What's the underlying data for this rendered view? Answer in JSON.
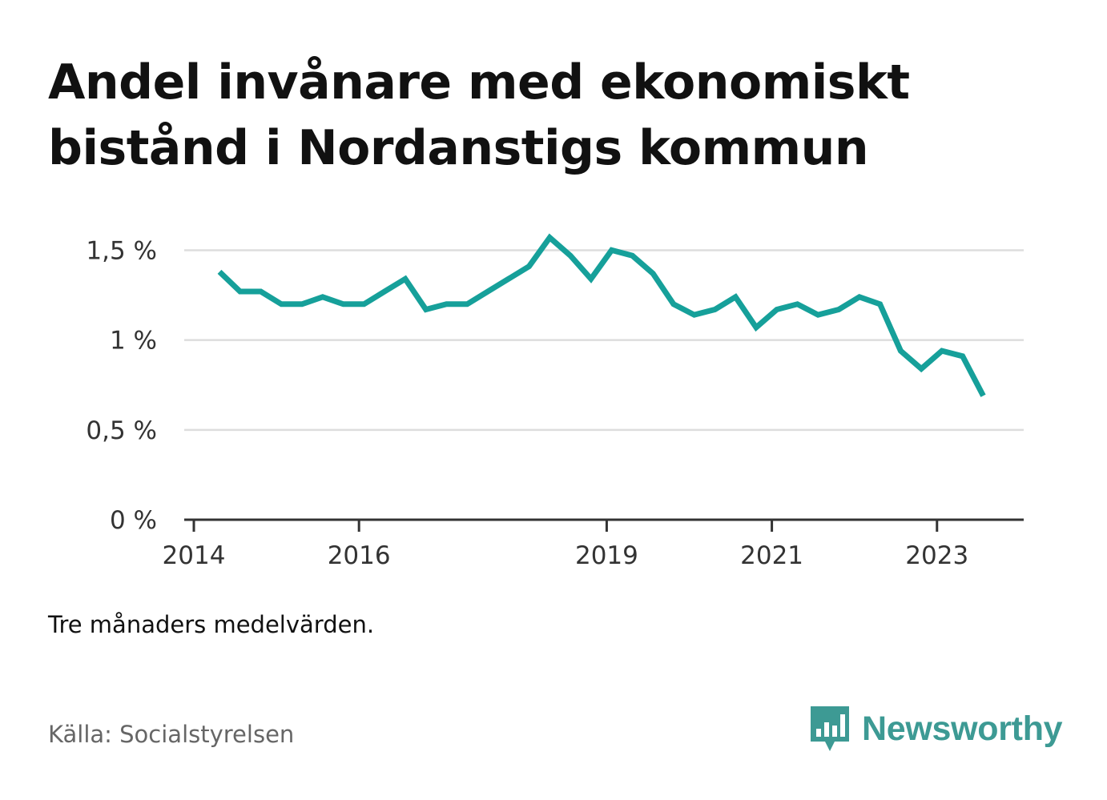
{
  "title": "Andel invånare med ekonomiskt bistånd i Nordanstigs kommun",
  "note": "Tre månaders medelvärden.",
  "source": "Källa: Socialstyrelsen",
  "brand": {
    "name": "Newsworthy",
    "icon": "newsworthy-chart-bubble-icon",
    "color": "#3d9a94"
  },
  "chart_data": {
    "type": "line",
    "title": "Andel invånare med ekonomiskt bistånd i Nordanstigs kommun",
    "xlabel": "",
    "ylabel": "",
    "ylim": [
      0,
      1.6
    ],
    "y_ticks": [
      {
        "value": 0,
        "label": "0 %"
      },
      {
        "value": 0.5,
        "label": "0,5 %"
      },
      {
        "value": 1,
        "label": "1 %"
      },
      {
        "value": 1.5,
        "label": "1,5 %"
      }
    ],
    "x_ticks": [
      {
        "value": 2014,
        "label": "2014"
      },
      {
        "value": 2016,
        "label": "2016"
      },
      {
        "value": 2019,
        "label": "2019"
      },
      {
        "value": 2021,
        "label": "2021"
      },
      {
        "value": 2023,
        "label": "2023"
      }
    ],
    "xlim": [
      2014,
      2024.05
    ],
    "grid": true,
    "series": [
      {
        "color": "#16a09a",
        "x": [
          2014.31,
          2014.56,
          2014.81,
          2015.06,
          2015.31,
          2015.56,
          2015.81,
          2016.06,
          2016.31,
          2016.56,
          2016.81,
          2017.06,
          2017.31,
          2017.56,
          2017.81,
          2018.06,
          2018.31,
          2018.56,
          2018.81,
          2019.06,
          2019.31,
          2019.56,
          2019.81,
          2020.06,
          2020.31,
          2020.56,
          2020.81,
          2021.06,
          2021.31,
          2021.56,
          2021.81,
          2022.06,
          2022.31,
          2022.56,
          2022.81,
          2023.06,
          2023.31,
          2023.56
        ],
        "values": [
          1.38,
          1.27,
          1.27,
          1.2,
          1.2,
          1.24,
          1.2,
          1.2,
          1.27,
          1.34,
          1.17,
          1.2,
          1.2,
          1.27,
          1.34,
          1.41,
          1.57,
          1.47,
          1.34,
          1.5,
          1.47,
          1.37,
          1.2,
          1.14,
          1.17,
          1.24,
          1.07,
          1.17,
          1.2,
          1.14,
          1.17,
          1.24,
          1.2,
          0.94,
          0.84,
          0.94,
          0.91,
          0.69
        ]
      }
    ]
  }
}
